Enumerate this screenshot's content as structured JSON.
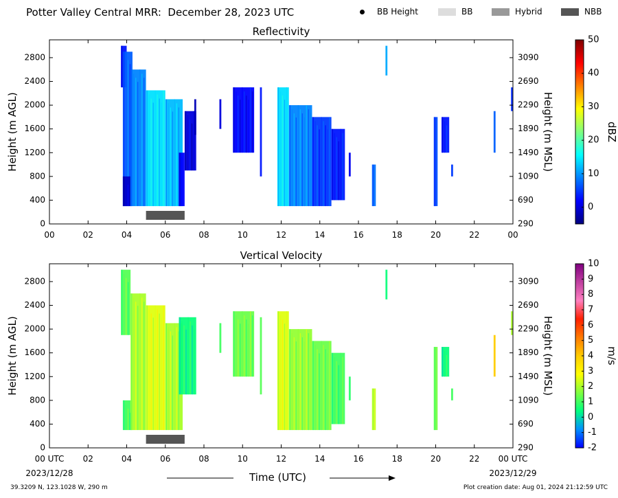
{
  "header": {
    "title": "Potter Valley Central MRR:  December 28, 2023 UTC"
  },
  "legend": [
    {
      "label": "BB Height",
      "kind": "dot",
      "color": "#000000"
    },
    {
      "label": "BB",
      "kind": "box",
      "color": "#dddddd"
    },
    {
      "label": "Hybrid",
      "kind": "box",
      "color": "#999999"
    },
    {
      "label": "NBB",
      "kind": "box",
      "color": "#555555"
    }
  ],
  "footer": {
    "location": "39.3209 N, 123.1028 W, 290 m",
    "created": "Plot creation date: Aug 01, 2024 21:12:59 UTC",
    "xaxis_title": "Time (UTC)",
    "start_date": "2023/12/28",
    "end_date": "2023/12/29"
  },
  "chart_data": [
    {
      "type": "heatmap",
      "title": "Reflectivity",
      "ylabel": "Height (m AGL)",
      "ylabel_right": "Height (m MSL)",
      "xlim": [
        0,
        24
      ],
      "ylim": [
        0,
        3100
      ],
      "x_ticks": [
        "00",
        "02",
        "04",
        "06",
        "08",
        "10",
        "12",
        "14",
        "16",
        "18",
        "20",
        "22",
        "00"
      ],
      "y_ticks": [
        0,
        400,
        800,
        1200,
        1600,
        2000,
        2400,
        2800
      ],
      "y_ticks_right": [
        290,
        690,
        1090,
        1490,
        1890,
        2290,
        2690,
        3090
      ],
      "colorbar": {
        "label": "dBZ",
        "min": -5,
        "max": 50,
        "ticks": [
          0,
          10,
          20,
          30,
          40,
          50
        ],
        "colors": [
          "#00007f",
          "#0000ff",
          "#0080ff",
          "#00ffff",
          "#80ff80",
          "#ffff00",
          "#ff8000",
          "#ff0000",
          "#7f0000"
        ]
      },
      "nbb_band": {
        "start": 5.0,
        "end": 7.0
      },
      "columns": [
        {
          "start": 3.7,
          "end": 4.0,
          "bottom": 2300,
          "top": 3000,
          "value": 3
        },
        {
          "start": 3.8,
          "end": 4.3,
          "bottom": 300,
          "top": 2900,
          "value": 7
        },
        {
          "start": 3.8,
          "end": 4.2,
          "bottom": 300,
          "top": 800,
          "value": -1
        },
        {
          "start": 4.2,
          "end": 5.0,
          "bottom": 300,
          "top": 2600,
          "value": 9
        },
        {
          "start": 5.0,
          "end": 6.0,
          "bottom": 300,
          "top": 2250,
          "value": 14
        },
        {
          "start": 6.0,
          "end": 6.9,
          "bottom": 300,
          "top": 2100,
          "value": 12
        },
        {
          "start": 6.7,
          "end": 7.0,
          "bottom": 300,
          "top": 1200,
          "value": 2
        },
        {
          "start": 7.0,
          "end": 7.6,
          "bottom": 900,
          "top": 1900,
          "value": 0
        },
        {
          "start": 7.5,
          "end": 7.6,
          "bottom": 1500,
          "top": 2100,
          "value": -2
        },
        {
          "start": 8.8,
          "end": 8.9,
          "bottom": 1600,
          "top": 2100,
          "value": 0
        },
        {
          "start": 9.5,
          "end": 10.6,
          "bottom": 1200,
          "top": 2300,
          "value": 2
        },
        {
          "start": 10.9,
          "end": 11.0,
          "bottom": 800,
          "top": 2300,
          "value": 3
        },
        {
          "start": 11.8,
          "end": 12.4,
          "bottom": 300,
          "top": 2300,
          "value": 14
        },
        {
          "start": 12.4,
          "end": 13.6,
          "bottom": 300,
          "top": 2000,
          "value": 9
        },
        {
          "start": 13.6,
          "end": 14.6,
          "bottom": 300,
          "top": 1800,
          "value": 5
        },
        {
          "start": 14.6,
          "end": 15.3,
          "bottom": 400,
          "top": 1600,
          "value": 3
        },
        {
          "start": 15.5,
          "end": 15.6,
          "bottom": 800,
          "top": 1200,
          "value": 1
        },
        {
          "start": 16.7,
          "end": 16.9,
          "bottom": 300,
          "top": 1000,
          "value": 8
        },
        {
          "start": 17.4,
          "end": 17.5,
          "bottom": 2500,
          "top": 3000,
          "value": 11
        },
        {
          "start": 19.9,
          "end": 20.1,
          "bottom": 300,
          "top": 1800,
          "value": 6
        },
        {
          "start": 20.3,
          "end": 20.7,
          "bottom": 1200,
          "top": 1800,
          "value": 3
        },
        {
          "start": 20.8,
          "end": 20.9,
          "bottom": 800,
          "top": 1000,
          "value": 5
        },
        {
          "start": 23.0,
          "end": 23.1,
          "bottom": 1200,
          "top": 1900,
          "value": 7
        },
        {
          "start": 23.9,
          "end": 24.0,
          "bottom": 1900,
          "top": 2300,
          "value": 4
        }
      ]
    },
    {
      "type": "heatmap",
      "title": "Vertical Velocity",
      "ylabel": "Height (m AGL)",
      "ylabel_right": "Height (m MSL)",
      "xlim": [
        0,
        24
      ],
      "ylim": [
        0,
        3100
      ],
      "x_ticks": [
        "00 UTC",
        "02",
        "04",
        "06",
        "08",
        "10",
        "12",
        "14",
        "16",
        "18",
        "20",
        "22",
        "00 UTC"
      ],
      "y_ticks": [
        0,
        400,
        800,
        1200,
        1600,
        2000,
        2400,
        2800
      ],
      "y_ticks_right": [
        290,
        690,
        1090,
        1490,
        1890,
        2290,
        2690,
        3090
      ],
      "colorbar": {
        "label": "m/s",
        "min": -2,
        "max": 10,
        "ticks": [
          -2,
          -1,
          0,
          1,
          2,
          3,
          4,
          5,
          6,
          7,
          8,
          9,
          10
        ],
        "colors": [
          "#0000ff",
          "#0090ff",
          "#00ff80",
          "#80ff40",
          "#ffff00",
          "#ffcc00",
          "#ff7a00",
          "#ff2000",
          "#ff80c0",
          "#c040a0",
          "#800080"
        ]
      },
      "nbb_band": {
        "start": 5.0,
        "end": 7.0
      },
      "columns": [
        {
          "start": 3.7,
          "end": 4.2,
          "bottom": 1900,
          "top": 3000,
          "value": 1.2
        },
        {
          "start": 3.8,
          "end": 4.3,
          "bottom": 300,
          "top": 800,
          "value": 1.0
        },
        {
          "start": 4.2,
          "end": 5.0,
          "bottom": 300,
          "top": 2600,
          "value": 2.0
        },
        {
          "start": 5.0,
          "end": 6.0,
          "bottom": 300,
          "top": 2400,
          "value": 2.5
        },
        {
          "start": 6.0,
          "end": 6.9,
          "bottom": 300,
          "top": 2100,
          "value": 2.0
        },
        {
          "start": 6.7,
          "end": 7.6,
          "bottom": 900,
          "top": 2200,
          "value": 0.5
        },
        {
          "start": 8.8,
          "end": 8.9,
          "bottom": 1600,
          "top": 2100,
          "value": 1.0
        },
        {
          "start": 9.5,
          "end": 10.6,
          "bottom": 1200,
          "top": 2300,
          "value": 1.4
        },
        {
          "start": 10.9,
          "end": 11.0,
          "bottom": 900,
          "top": 2200,
          "value": 1.2
        },
        {
          "start": 11.8,
          "end": 12.4,
          "bottom": 300,
          "top": 2300,
          "value": 2.5
        },
        {
          "start": 12.4,
          "end": 13.6,
          "bottom": 300,
          "top": 2000,
          "value": 1.8
        },
        {
          "start": 13.6,
          "end": 14.6,
          "bottom": 300,
          "top": 1800,
          "value": 1.4
        },
        {
          "start": 14.6,
          "end": 15.3,
          "bottom": 400,
          "top": 1600,
          "value": 1.0
        },
        {
          "start": 15.5,
          "end": 15.6,
          "bottom": 800,
          "top": 1200,
          "value": 0.8
        },
        {
          "start": 16.7,
          "end": 16.9,
          "bottom": 300,
          "top": 1000,
          "value": 2.3
        },
        {
          "start": 17.4,
          "end": 17.5,
          "bottom": 2500,
          "top": 3000,
          "value": 0.5
        },
        {
          "start": 19.9,
          "end": 20.1,
          "bottom": 300,
          "top": 1700,
          "value": 1.5
        },
        {
          "start": 20.3,
          "end": 20.7,
          "bottom": 1200,
          "top": 1700,
          "value": 0.5
        },
        {
          "start": 20.8,
          "end": 20.9,
          "bottom": 800,
          "top": 1000,
          "value": 1.0
        },
        {
          "start": 23.0,
          "end": 23.1,
          "bottom": 1200,
          "top": 1900,
          "value": 4.0
        },
        {
          "start": 23.9,
          "end": 24.0,
          "bottom": 1900,
          "top": 2300,
          "value": 2.0
        }
      ]
    }
  ]
}
